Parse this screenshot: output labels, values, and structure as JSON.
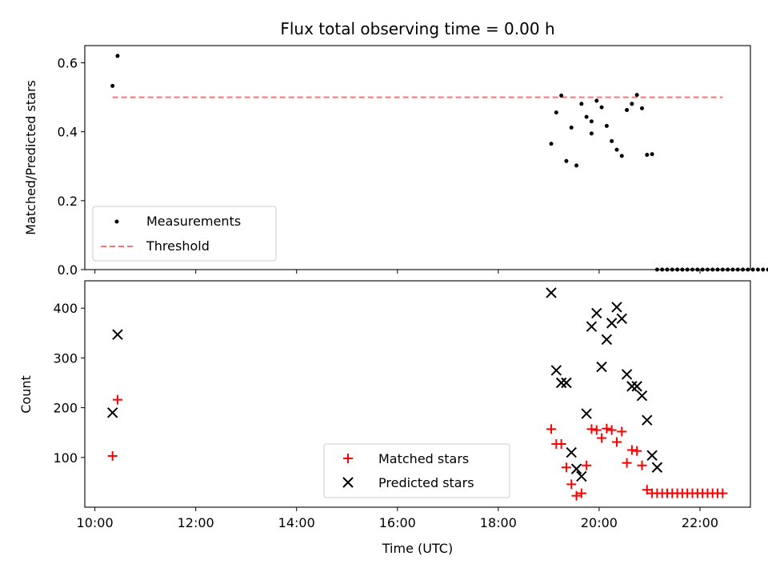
{
  "chart_data": [
    {
      "type": "scatter",
      "title": "Flux total observing time = 0.00 h",
      "xlabel": "",
      "ylabel": "Matched/Predicted stars",
      "xlim": [
        "09:48",
        "23:00"
      ],
      "ylim": [
        0,
        0.65
      ],
      "yticks": [
        "0.0",
        "0.2",
        "0.4",
        "0.6"
      ],
      "legend": "lower-left",
      "series": [
        {
          "name": "Measurements",
          "color": "#000000",
          "marker": "dot",
          "points": [
            [
              "10:21",
              0.533
            ],
            [
              "10:27",
              0.62
            ],
            [
              "19:03",
              0.365
            ],
            [
              "19:09",
              0.456
            ],
            [
              "19:15",
              0.505
            ],
            [
              "19:21",
              0.315
            ],
            [
              "19:27",
              0.412
            ],
            [
              "19:33",
              0.302
            ],
            [
              "19:39",
              0.481
            ],
            [
              "19:45",
              0.443
            ],
            [
              "19:51",
              0.43
            ],
            [
              "19:51",
              0.395
            ],
            [
              "19:57",
              0.49
            ],
            [
              "20:03",
              0.471
            ],
            [
              "20:09",
              0.417
            ],
            [
              "20:15",
              0.373
            ],
            [
              "20:21",
              0.348
            ],
            [
              "20:27",
              0.33
            ],
            [
              "20:33",
              0.463
            ],
            [
              "20:39",
              0.481
            ],
            [
              "20:45",
              0.507
            ],
            [
              "20:51",
              0.468
            ],
            [
              "20:57",
              0.333
            ],
            [
              "21:03",
              0.335
            ],
            [
              "21:09",
              0
            ],
            [
              "21:15",
              0
            ],
            [
              "21:21",
              0
            ],
            [
              "21:27",
              0
            ],
            [
              "21:33",
              0
            ],
            [
              "21:39",
              0
            ],
            [
              "21:45",
              0
            ],
            [
              "21:51",
              0
            ],
            [
              "21:57",
              0
            ],
            [
              "22:03",
              0
            ],
            [
              "22:09",
              0
            ],
            [
              "22:15",
              0
            ],
            [
              "22:21",
              0
            ],
            [
              "22:27",
              0
            ],
            [
              "22:33",
              0
            ],
            [
              "22:39",
              0
            ],
            [
              "22:45",
              0
            ],
            [
              "22:51",
              0
            ],
            [
              "22:57",
              0
            ],
            [
              "23:03",
              0
            ],
            [
              "23:09",
              0
            ],
            [
              "23:15",
              0
            ],
            [
              "23:21",
              0
            ]
          ]
        },
        {
          "name": "Threshold",
          "color": "#ff7070",
          "style": "dashed",
          "points": [
            [
              "10:21",
              0.5
            ],
            [
              "22:27",
              0.5
            ]
          ]
        }
      ]
    },
    {
      "type": "scatter",
      "title": "",
      "xlabel": "Time (UTC)",
      "ylabel": "Count",
      "xlim": [
        "09:48",
        "23:00"
      ],
      "ylim": [
        0,
        455
      ],
      "yticks": [
        "100",
        "200",
        "300",
        "400"
      ],
      "xticks": [
        "10:00",
        "12:00",
        "14:00",
        "16:00",
        "18:00",
        "20:00",
        "22:00"
      ],
      "legend": "lower-center",
      "series": [
        {
          "name": "Matched stars",
          "color": "#ff0000",
          "marker": "plus",
          "points": [
            [
              "10:21",
              103
            ],
            [
              "10:27",
              216
            ],
            [
              "19:03",
              157
            ],
            [
              "19:09",
              127
            ],
            [
              "19:15",
              127
            ],
            [
              "19:21",
              80
            ],
            [
              "19:27",
              46
            ],
            [
              "19:33",
              23
            ],
            [
              "19:39",
              28
            ],
            [
              "19:45",
              84
            ],
            [
              "19:51",
              157
            ],
            [
              "19:57",
              155
            ],
            [
              "20:03",
              139
            ],
            [
              "20:09",
              158
            ],
            [
              "20:15",
              155
            ],
            [
              "20:21",
              131
            ],
            [
              "20:27",
              152
            ],
            [
              "20:33",
              89
            ],
            [
              "20:39",
              115
            ],
            [
              "20:45",
              113
            ],
            [
              "20:51",
              84
            ],
            [
              "20:57",
              35
            ],
            [
              "21:03",
              28
            ],
            [
              "21:09",
              28
            ],
            [
              "21:15",
              28
            ],
            [
              "21:21",
              28
            ],
            [
              "21:27",
              28
            ],
            [
              "21:33",
              28
            ],
            [
              "21:39",
              28
            ],
            [
              "21:45",
              28
            ],
            [
              "21:51",
              28
            ],
            [
              "21:57",
              28
            ],
            [
              "22:03",
              28
            ],
            [
              "22:09",
              28
            ],
            [
              "22:15",
              28
            ],
            [
              "22:21",
              28
            ],
            [
              "22:27",
              28
            ]
          ]
        },
        {
          "name": "Predicted stars",
          "color": "#000000",
          "marker": "x",
          "points": [
            [
              "10:21",
              190
            ],
            [
              "10:27",
              347
            ],
            [
              "19:03",
              431
            ],
            [
              "19:09",
              275
            ],
            [
              "19:15",
              250
            ],
            [
              "19:21",
              250
            ],
            [
              "19:27",
              110
            ],
            [
              "19:33",
              77
            ],
            [
              "19:39",
              62
            ],
            [
              "19:45",
              188
            ],
            [
              "19:51",
              363
            ],
            [
              "19:57",
              390
            ],
            [
              "20:03",
              282
            ],
            [
              "20:09",
              337
            ],
            [
              "20:15",
              370
            ],
            [
              "20:21",
              402
            ],
            [
              "20:27",
              379
            ],
            [
              "20:33",
              267
            ],
            [
              "20:39",
              243
            ],
            [
              "20:45",
              243
            ],
            [
              "20:51",
              224
            ],
            [
              "20:57",
              175
            ],
            [
              "21:03",
              104
            ],
            [
              "21:09",
              80
            ]
          ]
        }
      ]
    }
  ]
}
